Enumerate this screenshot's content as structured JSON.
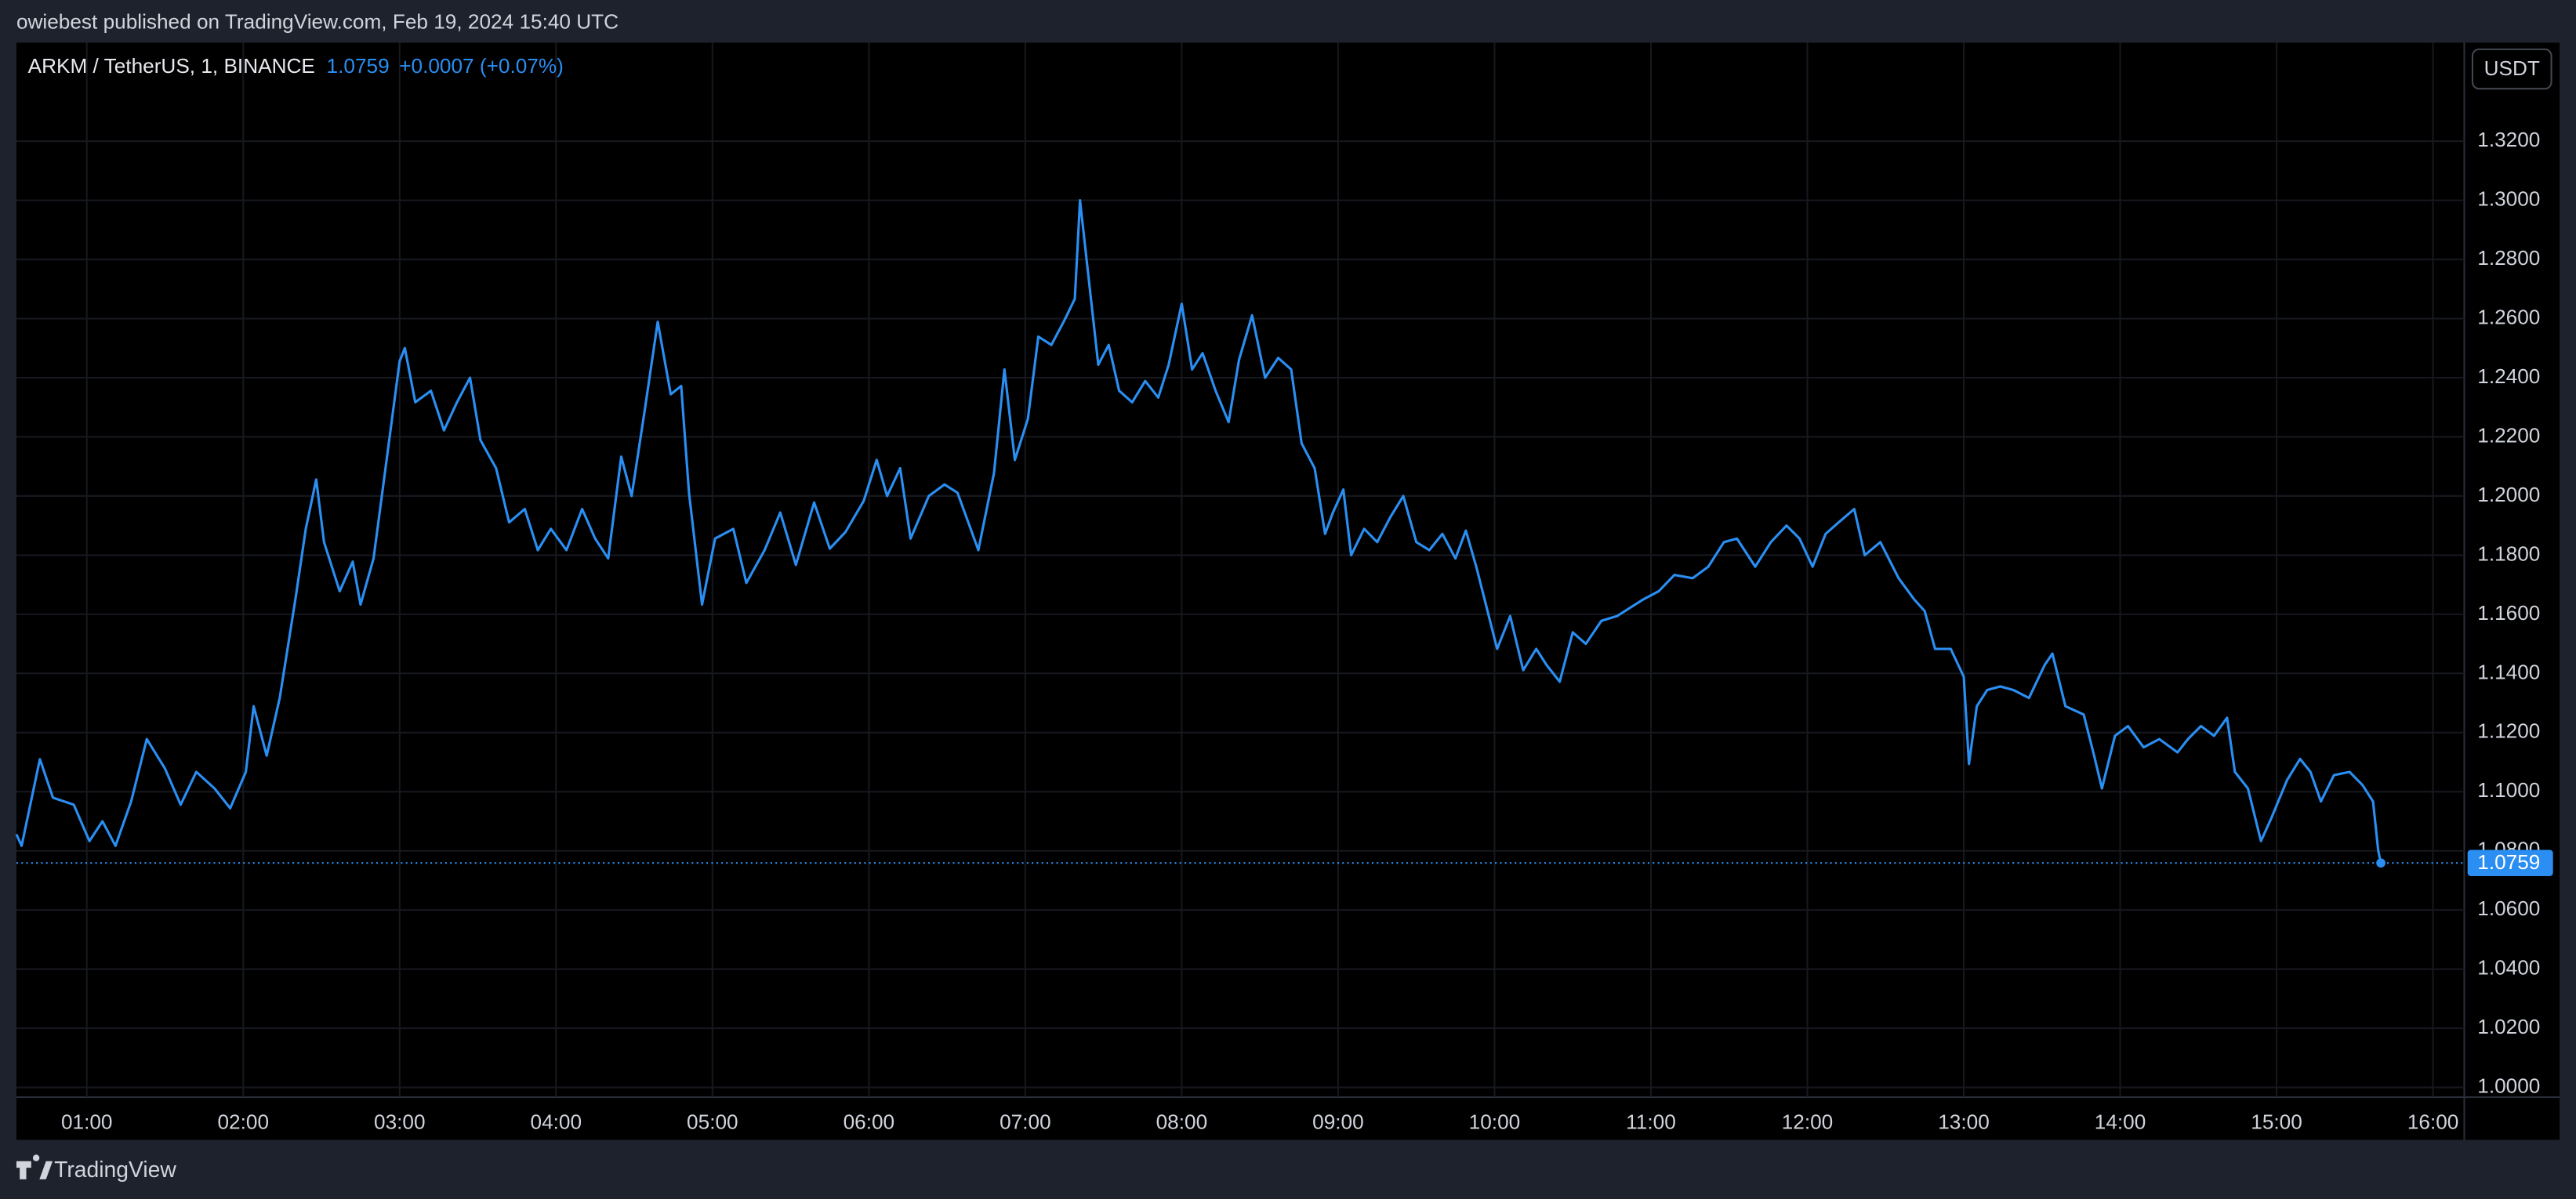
{
  "header": {
    "text": "owiebest published on TradingView.com, Feb 19, 2024 15:40 UTC"
  },
  "chart_data": {
    "type": "line",
    "symbol": "ARKM / TetherUS, 1, BINANCE",
    "last_price": 1.0759,
    "change": "+0.0007 (+0.07%)",
    "currency": "USDT",
    "color": "#2a8ef2",
    "grid": true,
    "x": [
      33,
      35,
      42,
      47,
      55,
      61,
      66,
      71,
      77,
      83,
      90,
      96,
      102,
      109,
      115,
      121,
      124,
      129,
      134,
      140,
      144,
      148,
      151,
      157,
      162,
      165,
      170,
      175,
      180,
      182,
      186,
      192,
      197,
      202,
      207,
      211,
      217,
      222,
      228,
      233,
      238,
      244,
      250,
      255,
      260,
      265,
      269,
      274,
      279,
      284,
      288,
      291,
      296,
      301,
      308,
      313,
      320,
      326,
      332,
      339,
      345,
      351,
      358,
      363,
      367,
      372,
      376,
      383,
      389,
      394,
      402,
      408,
      412,
      416,
      421,
      425,
      430,
      435,
      439,
      441,
      444,
      448,
      452,
      456,
      461,
      466,
      471,
      475,
      480,
      484,
      488,
      493,
      498,
      502,
      507,
      512,
      517,
      522,
      526,
      531,
      535,
      538,
      542,
      545,
      550,
      555,
      560,
      565,
      570,
      575,
      580,
      585,
      589,
      593,
      597,
      601,
      606,
      611,
      616,
      620,
      625,
      630,
      635,
      641,
      647,
      652,
      657,
      663,
      669,
      676,
      682,
      688,
      693,
      700,
      706,
      712,
      717,
      722,
      727,
      732,
      738,
      742,
      748,
      755,
      761,
      765,
      769,
      775,
      780,
      782,
      785,
      789,
      794,
      799,
      805,
      811,
      814,
      819,
      826,
      830,
      833,
      838,
      843,
      849,
      855,
      862,
      866,
      871,
      876,
      881,
      884,
      889,
      894,
      898,
      904,
      909,
      913,
      917,
      922,
      928,
      933,
      937,
      939,
      940
    ],
    "values": [
      1.0856,
      1.0817,
      1.111,
      1.098,
      1.0956,
      1.0833,
      1.09,
      1.0817,
      1.0967,
      1.1178,
      1.1078,
      1.0956,
      1.1067,
      1.1011,
      1.0944,
      1.1067,
      1.1289,
      1.1122,
      1.1317,
      1.165,
      1.1889,
      1.2056,
      1.1844,
      1.1678,
      1.1778,
      1.1633,
      1.1789,
      1.2122,
      1.2456,
      1.25,
      1.2317,
      1.2356,
      1.2222,
      1.2317,
      1.24,
      1.2189,
      1.2094,
      1.1911,
      1.1956,
      1.1817,
      1.1889,
      1.1817,
      1.1956,
      1.1856,
      1.1789,
      1.2133,
      1.2,
      1.2289,
      1.2589,
      1.2344,
      1.2372,
      1.2011,
      1.1633,
      1.1856,
      1.1889,
      1.1706,
      1.1817,
      1.1944,
      1.1767,
      1.1978,
      1.1822,
      1.1878,
      1.1983,
      1.2122,
      1.2,
      1.2094,
      1.1856,
      1.2,
      1.2039,
      1.2011,
      1.1817,
      1.2078,
      1.2428,
      1.2122,
      1.2261,
      1.2539,
      1.2511,
      1.2594,
      1.2667,
      1.3,
      1.2761,
      1.2444,
      1.2511,
      1.2356,
      1.2317,
      1.2389,
      1.2333,
      1.2444,
      1.265,
      1.2428,
      1.2483,
      1.2356,
      1.225,
      1.2461,
      1.2611,
      1.24,
      1.2467,
      1.2428,
      1.2178,
      1.2094,
      1.1872,
      1.1944,
      1.2022,
      1.18,
      1.1889,
      1.1844,
      1.1928,
      1.2,
      1.1844,
      1.1817,
      1.1872,
      1.1789,
      1.1883,
      1.1761,
      1.1622,
      1.1483,
      1.1594,
      1.1411,
      1.1483,
      1.1428,
      1.1372,
      1.1539,
      1.15,
      1.1578,
      1.1594,
      1.1622,
      1.165,
      1.1678,
      1.1733,
      1.1722,
      1.1761,
      1.1844,
      1.1856,
      1.1761,
      1.1844,
      1.19,
      1.1856,
      1.1761,
      1.1872,
      1.1911,
      1.1956,
      1.18,
      1.1844,
      1.1722,
      1.165,
      1.1611,
      1.1483,
      1.1483,
      1.1389,
      1.1094,
      1.1289,
      1.1344,
      1.1356,
      1.1344,
      1.1317,
      1.1428,
      1.1467,
      1.1289,
      1.1261,
      1.1122,
      1.1011,
      1.1189,
      1.1222,
      1.115,
      1.1178,
      1.1133,
      1.1178,
      1.1222,
      1.1189,
      1.125,
      1.1067,
      1.1011,
      1.0833,
      1.0911,
      1.1039,
      1.1111,
      1.1067,
      1.0967,
      1.1056,
      1.1067,
      1.1022,
      1.0967,
      1.08,
      1.0759
    ],
    "xlim": [
      33,
      972
    ],
    "ylim": [
      0.9967,
      1.3533
    ],
    "xticks": [
      {
        "value": 60,
        "label": "01:00"
      },
      {
        "value": 120,
        "label": "02:00"
      },
      {
        "value": 180,
        "label": "03:00"
      },
      {
        "value": 240,
        "label": "04:00"
      },
      {
        "value": 300,
        "label": "05:00"
      },
      {
        "value": 360,
        "label": "06:00"
      },
      {
        "value": 420,
        "label": "07:00"
      },
      {
        "value": 480,
        "label": "08:00"
      },
      {
        "value": 540,
        "label": "09:00"
      },
      {
        "value": 600,
        "label": "10:00"
      },
      {
        "value": 660,
        "label": "11:00"
      },
      {
        "value": 720,
        "label": "12:00"
      },
      {
        "value": 780,
        "label": "13:00"
      },
      {
        "value": 840,
        "label": "14:00"
      },
      {
        "value": 900,
        "label": "15:00"
      },
      {
        "value": 960,
        "label": "16:00"
      }
    ],
    "yticks": [
      {
        "value": 1.0,
        "label": "1.0000"
      },
      {
        "value": 1.02,
        "label": "1.0200"
      },
      {
        "value": 1.04,
        "label": "1.0400"
      },
      {
        "value": 1.06,
        "label": "1.0600"
      },
      {
        "value": 1.08,
        "label": "1.0800"
      },
      {
        "value": 1.1,
        "label": "1.1000"
      },
      {
        "value": 1.12,
        "label": "1.1200"
      },
      {
        "value": 1.14,
        "label": "1.1400"
      },
      {
        "value": 1.16,
        "label": "1.1600"
      },
      {
        "value": 1.18,
        "label": "1.1800"
      },
      {
        "value": 1.2,
        "label": "1.2000"
      },
      {
        "value": 1.22,
        "label": "1.2200"
      },
      {
        "value": 1.24,
        "label": "1.2400"
      },
      {
        "value": 1.26,
        "label": "1.2600"
      },
      {
        "value": 1.28,
        "label": "1.2800"
      },
      {
        "value": 1.3,
        "label": "1.3000"
      },
      {
        "value": 1.32,
        "label": "1.3200"
      }
    ]
  },
  "footer": {
    "brand": "TradingView"
  }
}
